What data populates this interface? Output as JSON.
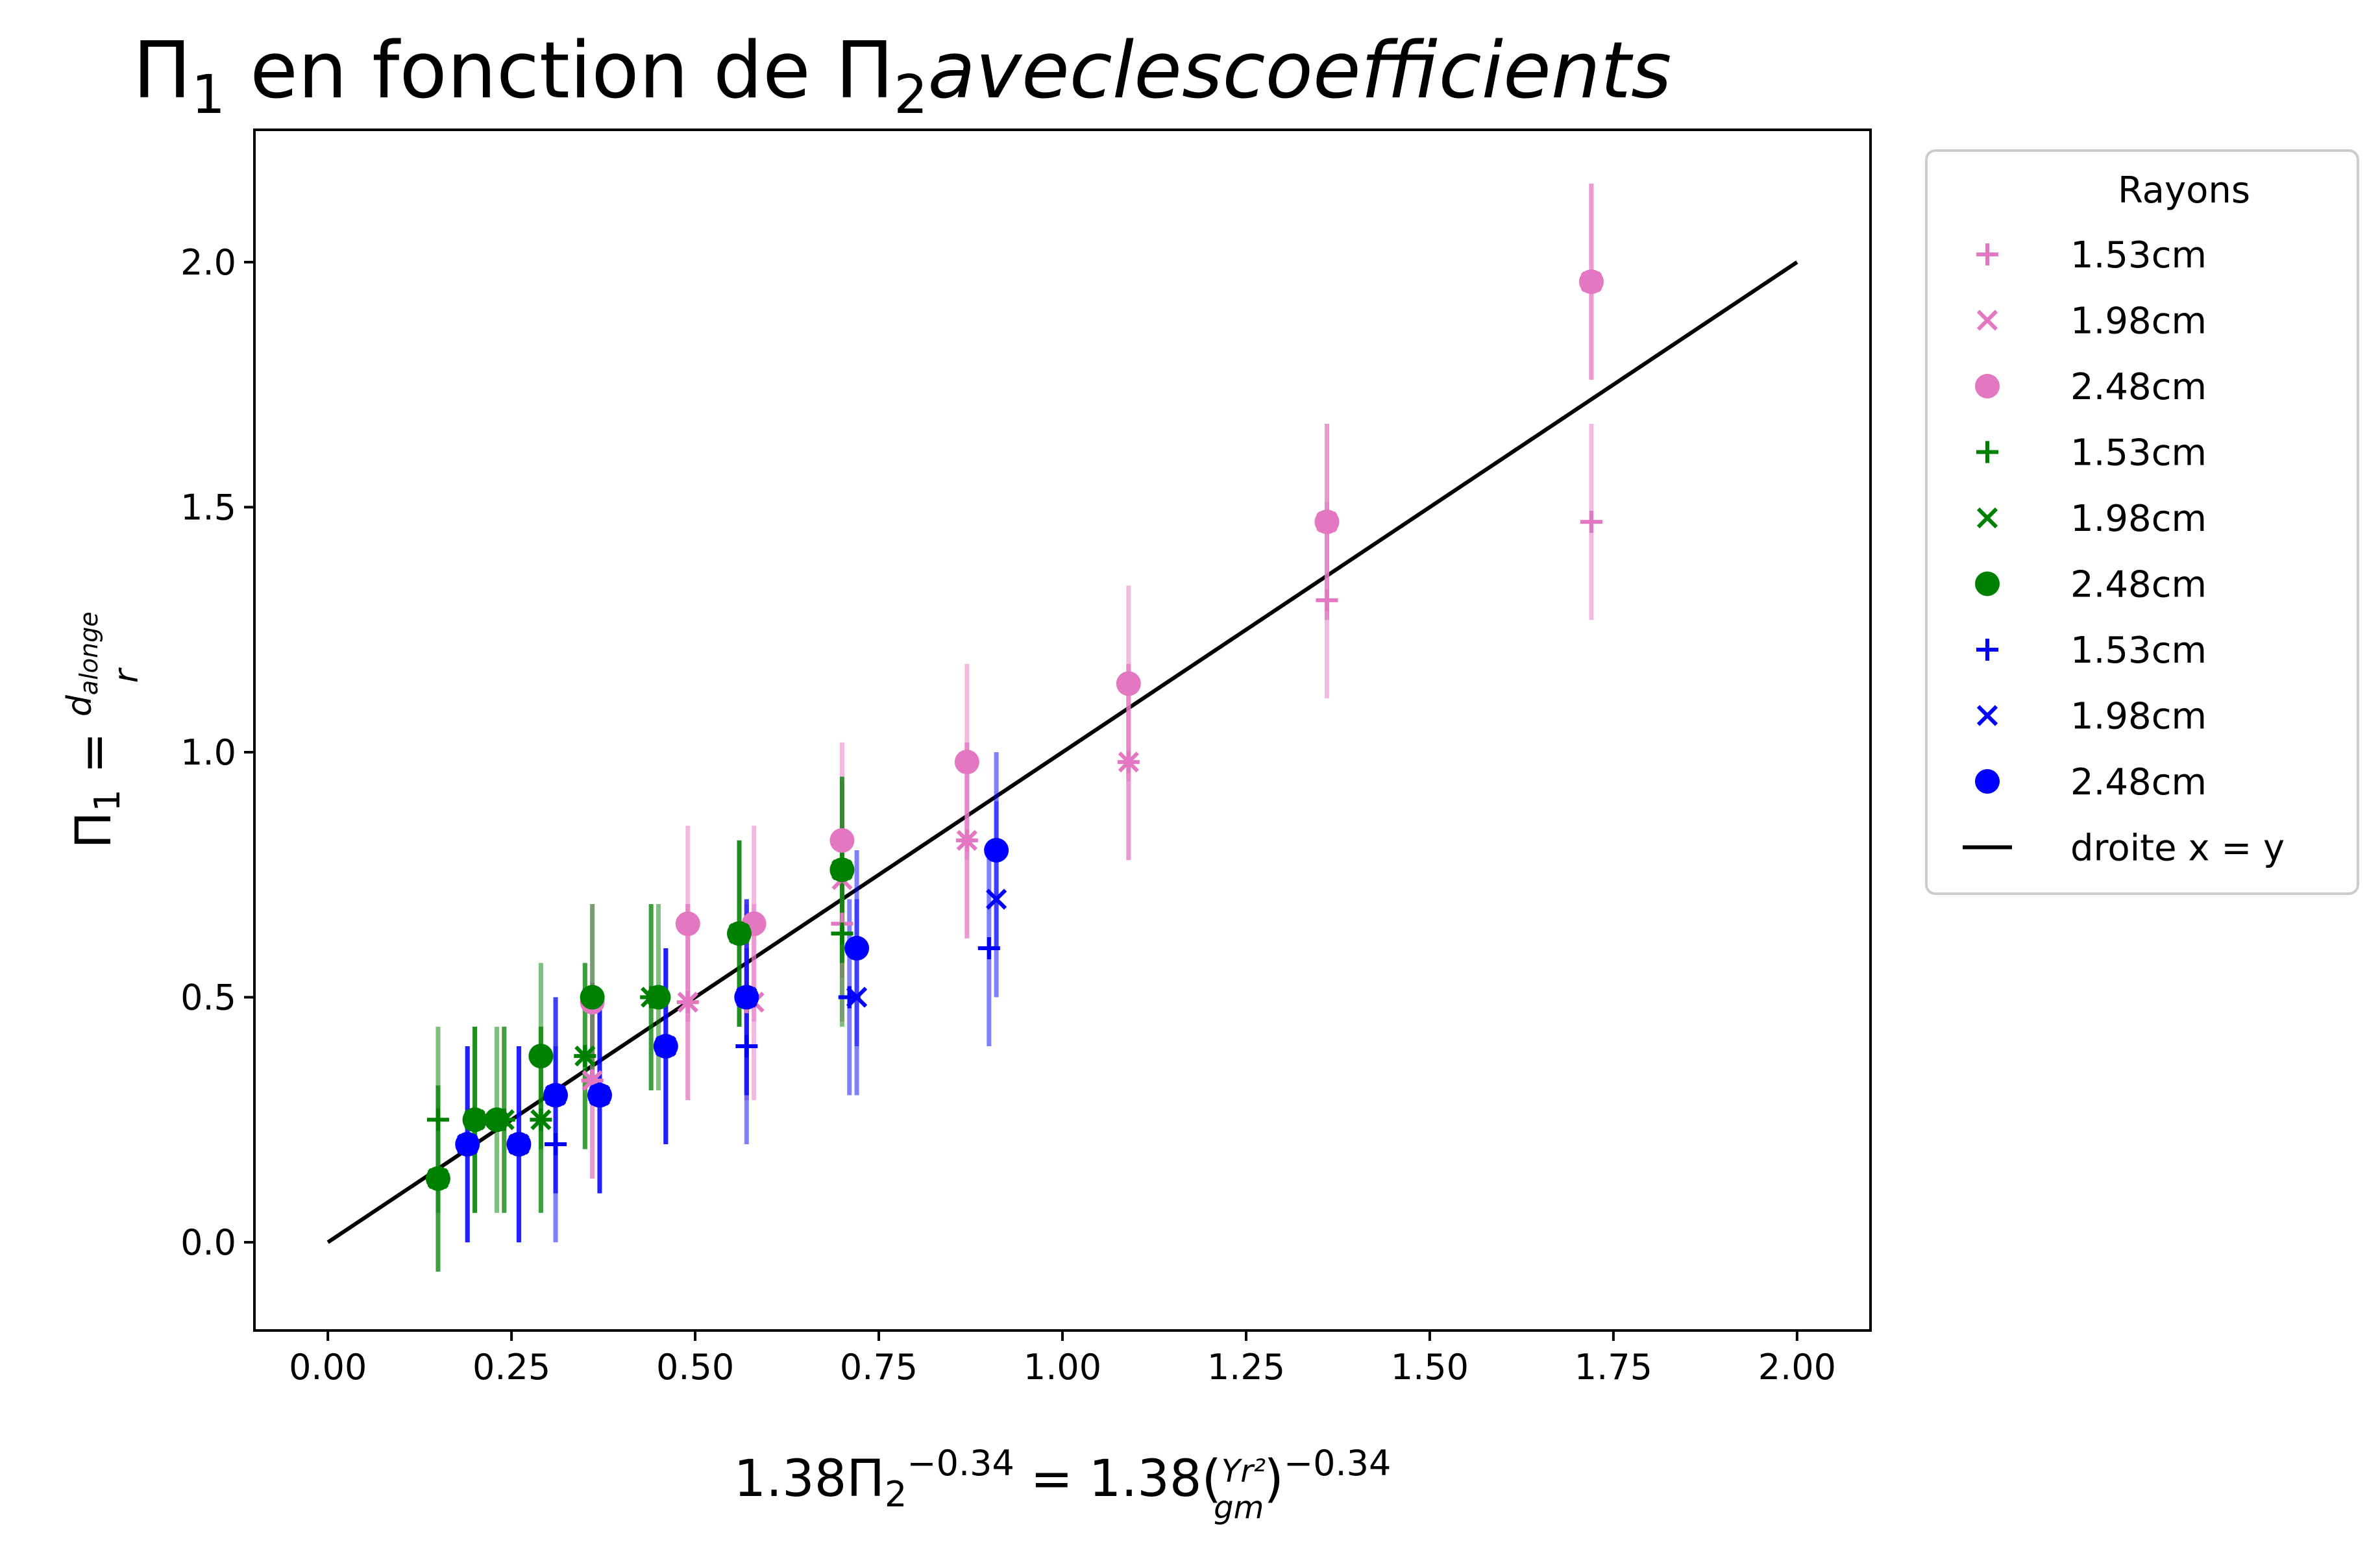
{
  "chart_data": {
    "type": "scatter",
    "title": {
      "main": "Π",
      "main_sub": "1",
      "mid": " en fonction de Π",
      "mid_sub": "2",
      "tail": "aveclescoefficients"
    },
    "xlabel": {
      "pre": "1.38Π",
      "sub": "2",
      "sup1": "−0.34",
      "mid": " = 1.38(",
      "frac_num": "Yr²",
      "frac_den": "gm",
      "close": ")",
      "sup2": "−0.34"
    },
    "ylabel": {
      "pre": "Π",
      "sub": "1",
      "eq": " = ",
      "frac_num": "d",
      "frac_num_sub": "alonge",
      "frac_den": "r"
    },
    "xlim": [
      -0.1,
      2.1
    ],
    "ylim": [
      -0.18,
      2.27
    ],
    "xticks": [
      "0.00",
      "0.25",
      "0.50",
      "0.75",
      "1.00",
      "1.25",
      "1.50",
      "1.75",
      "2.00"
    ],
    "yticks": [
      "0.0",
      "0.5",
      "1.0",
      "1.5",
      "2.0"
    ],
    "legend": {
      "title": "Rayons",
      "placement": "outside-top-right",
      "entries": [
        {
          "label": "1.53cm",
          "marker": "plus",
          "color": "#e377c2"
        },
        {
          "label": "1.98cm",
          "marker": "x",
          "color": "#e377c2"
        },
        {
          "label": "2.48cm",
          "marker": "circle",
          "color": "#e377c2"
        },
        {
          "label": "1.53cm",
          "marker": "plus",
          "color": "#008000"
        },
        {
          "label": "1.98cm",
          "marker": "x",
          "color": "#008000"
        },
        {
          "label": "2.48cm",
          "marker": "circle",
          "color": "#008000"
        },
        {
          "label": "1.53cm",
          "marker": "plus",
          "color": "#0000ff"
        },
        {
          "label": "1.98cm",
          "marker": "x",
          "color": "#0000ff"
        },
        {
          "label": "2.48cm",
          "marker": "circle",
          "color": "#0000ff"
        },
        {
          "label": "droite x = y",
          "marker": "line",
          "color": "#000000"
        }
      ]
    },
    "reference_line": {
      "x": [
        0,
        2
      ],
      "y": [
        0,
        2
      ],
      "color": "#000000"
    },
    "series": [
      {
        "color": "#e377c2",
        "marker": "plus",
        "points": [
          {
            "x": 0.36,
            "y": 0.33,
            "err": 0.2
          },
          {
            "x": 0.49,
            "y": 0.49,
            "err": 0.2
          },
          {
            "x": 0.57,
            "y": 0.49,
            "err": 0.2
          },
          {
            "x": 0.7,
            "y": 0.65,
            "err": 0.2
          },
          {
            "x": 0.87,
            "y": 0.82,
            "err": 0.2
          },
          {
            "x": 1.09,
            "y": 0.98,
            "err": 0.2
          },
          {
            "x": 1.36,
            "y": 1.31,
            "err": 0.2
          },
          {
            "x": 1.72,
            "y": 1.47,
            "err": 0.2
          }
        ]
      },
      {
        "color": "#e377c2",
        "marker": "x",
        "points": [
          {
            "x": 0.36,
            "y": 0.33,
            "err": 0.2
          },
          {
            "x": 0.49,
            "y": 0.49,
            "err": 0.2
          },
          {
            "x": 0.58,
            "y": 0.49,
            "err": 0.2
          },
          {
            "x": 0.7,
            "y": 0.74,
            "err": 0.2
          },
          {
            "x": 0.87,
            "y": 0.82,
            "err": 0.2
          },
          {
            "x": 1.09,
            "y": 0.98,
            "err": 0.2
          },
          {
            "x": 1.36,
            "y": 1.47,
            "err": 0.2
          },
          {
            "x": 1.72,
            "y": 1.96,
            "err": 0.2
          }
        ]
      },
      {
        "color": "#e377c2",
        "marker": "circle",
        "points": [
          {
            "x": 0.36,
            "y": 0.49,
            "err": 0.2
          },
          {
            "x": 0.49,
            "y": 0.65,
            "err": 0.2
          },
          {
            "x": 0.58,
            "y": 0.65,
            "err": 0.2
          },
          {
            "x": 0.7,
            "y": 0.82,
            "err": 0.2
          },
          {
            "x": 0.87,
            "y": 0.98,
            "err": 0.2
          },
          {
            "x": 1.09,
            "y": 1.14,
            "err": 0.2
          },
          {
            "x": 1.36,
            "y": 1.47,
            "err": 0.2
          },
          {
            "x": 1.72,
            "y": 1.96,
            "err": 0.2
          }
        ]
      },
      {
        "color": "#008000",
        "marker": "plus",
        "points": [
          {
            "x": 0.15,
            "y": 0.25,
            "err": 0.19
          },
          {
            "x": 0.2,
            "y": 0.25,
            "err": 0.19
          },
          {
            "x": 0.24,
            "y": 0.25,
            "err": 0.19
          },
          {
            "x": 0.29,
            "y": 0.25,
            "err": 0.19
          },
          {
            "x": 0.35,
            "y": 0.38,
            "err": 0.19
          },
          {
            "x": 0.44,
            "y": 0.5,
            "err": 0.19
          },
          {
            "x": 0.56,
            "y": 0.63,
            "err": 0.19
          },
          {
            "x": 0.7,
            "y": 0.63,
            "err": 0.19
          }
        ]
      },
      {
        "color": "#008000",
        "marker": "x",
        "points": [
          {
            "x": 0.15,
            "y": 0.13,
            "err": 0.19
          },
          {
            "x": 0.2,
            "y": 0.25,
            "err": 0.19
          },
          {
            "x": 0.24,
            "y": 0.25,
            "err": 0.19
          },
          {
            "x": 0.29,
            "y": 0.25,
            "err": 0.19
          },
          {
            "x": 0.35,
            "y": 0.38,
            "err": 0.19
          },
          {
            "x": 0.44,
            "y": 0.5,
            "err": 0.19
          },
          {
            "x": 0.56,
            "y": 0.63,
            "err": 0.19
          },
          {
            "x": 0.7,
            "y": 0.76,
            "err": 0.19
          }
        ]
      },
      {
        "color": "#008000",
        "marker": "circle",
        "points": [
          {
            "x": 0.15,
            "y": 0.13,
            "err": 0.19
          },
          {
            "x": 0.2,
            "y": 0.25,
            "err": 0.19
          },
          {
            "x": 0.23,
            "y": 0.25,
            "err": 0.19
          },
          {
            "x": 0.29,
            "y": 0.38,
            "err": 0.19
          },
          {
            "x": 0.36,
            "y": 0.5,
            "err": 0.19
          },
          {
            "x": 0.45,
            "y": 0.5,
            "err": 0.19
          },
          {
            "x": 0.56,
            "y": 0.63,
            "err": 0.19
          },
          {
            "x": 0.7,
            "y": 0.76,
            "err": 0.19
          }
        ]
      },
      {
        "color": "#0000ff",
        "marker": "plus",
        "points": [
          {
            "x": 0.19,
            "y": 0.2,
            "err": 0.2
          },
          {
            "x": 0.26,
            "y": 0.2,
            "err": 0.2
          },
          {
            "x": 0.31,
            "y": 0.2,
            "err": 0.2
          },
          {
            "x": 0.37,
            "y": 0.3,
            "err": 0.2
          },
          {
            "x": 0.46,
            "y": 0.4,
            "err": 0.2
          },
          {
            "x": 0.57,
            "y": 0.4,
            "err": 0.2
          },
          {
            "x": 0.71,
            "y": 0.5,
            "err": 0.2
          },
          {
            "x": 0.9,
            "y": 0.6,
            "err": 0.2
          }
        ]
      },
      {
        "color": "#0000ff",
        "marker": "x",
        "points": [
          {
            "x": 0.19,
            "y": 0.2,
            "err": 0.2
          },
          {
            "x": 0.26,
            "y": 0.2,
            "err": 0.2
          },
          {
            "x": 0.31,
            "y": 0.3,
            "err": 0.2
          },
          {
            "x": 0.37,
            "y": 0.3,
            "err": 0.2
          },
          {
            "x": 0.46,
            "y": 0.4,
            "err": 0.2
          },
          {
            "x": 0.57,
            "y": 0.5,
            "err": 0.2
          },
          {
            "x": 0.72,
            "y": 0.5,
            "err": 0.2
          },
          {
            "x": 0.91,
            "y": 0.7,
            "err": 0.2
          }
        ]
      },
      {
        "color": "#0000ff",
        "marker": "circle",
        "points": [
          {
            "x": 0.19,
            "y": 0.2,
            "err": 0.2
          },
          {
            "x": 0.26,
            "y": 0.2,
            "err": 0.2
          },
          {
            "x": 0.31,
            "y": 0.3,
            "err": 0.2
          },
          {
            "x": 0.37,
            "y": 0.3,
            "err": 0.2
          },
          {
            "x": 0.46,
            "y": 0.4,
            "err": 0.2
          },
          {
            "x": 0.57,
            "y": 0.5,
            "err": 0.2
          },
          {
            "x": 0.72,
            "y": 0.6,
            "err": 0.2
          },
          {
            "x": 0.91,
            "y": 0.8,
            "err": 0.2
          }
        ]
      }
    ]
  }
}
